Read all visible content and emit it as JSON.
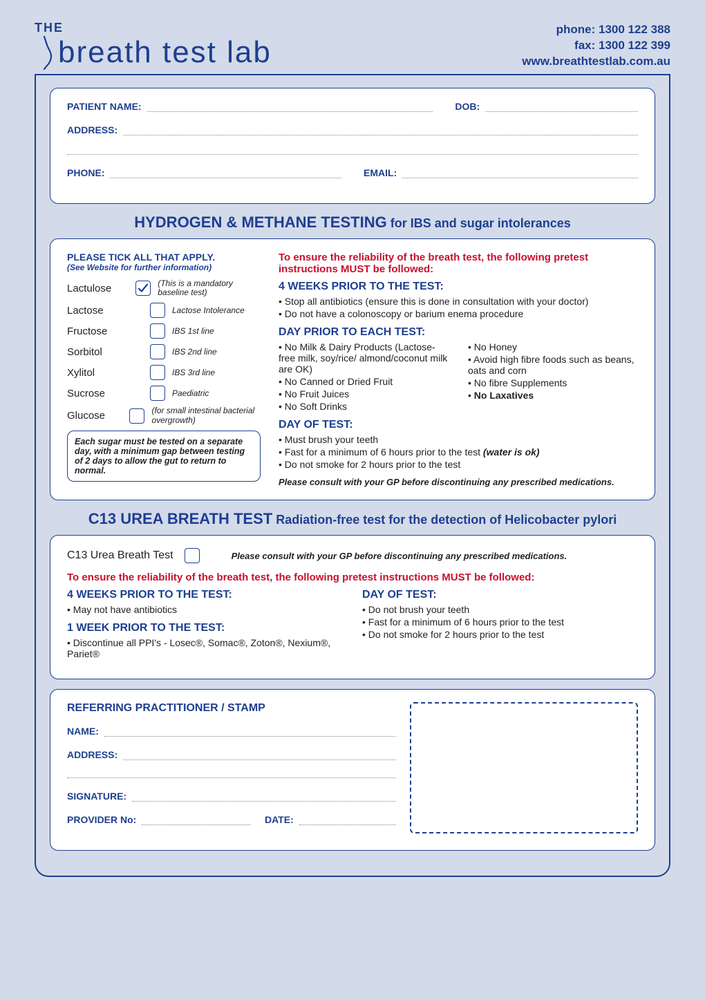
{
  "colors": {
    "brand_blue": "#1e3f90",
    "alert_red": "#c8102e",
    "page_bg": "#d3dae9",
    "panel_bg": "#ffffff",
    "dot_gray": "#888888"
  },
  "header": {
    "contact_phone": "phone: 1300 122 388",
    "contact_fax": "fax: 1300 122 399",
    "contact_web": "www.breathtestlab.com.au",
    "logo_the": "THE",
    "logo_name": "breath test lab"
  },
  "patient": {
    "name_label": "PATIENT NAME:",
    "dob_label": "DOB:",
    "address_label": "ADDRESS:",
    "phone_label": "PHONE:",
    "email_label": "EMAIL:"
  },
  "hmt": {
    "title_main": "HYDROGEN & METHANE TESTING",
    "title_sub": " for IBS and sugar intolerances",
    "tick_title": "PLEASE TICK ALL THAT APPLY.",
    "tick_sub": "(See Website for further information)",
    "tests": [
      {
        "name": "Lactulose",
        "checked": true,
        "note": "(This is a mandatory baseline test)"
      },
      {
        "name": "Lactose",
        "checked": false,
        "note": "Lactose Intolerance"
      },
      {
        "name": "Fructose",
        "checked": false,
        "note": "IBS 1st line"
      },
      {
        "name": "Sorbitol",
        "checked": false,
        "note": "IBS 2nd line"
      },
      {
        "name": "Xylitol",
        "checked": false,
        "note": "IBS 3rd line"
      },
      {
        "name": "Sucrose",
        "checked": false,
        "note": "Paediatric"
      },
      {
        "name": "Glucose",
        "checked": false,
        "note": "(for small intestinal bacterial overgrowth)"
      }
    ],
    "note_box": "Each sugar must be tested on a separate day, with a minimum gap between testing of 2 days to allow the gut to return to normal.",
    "pretest_intro": "To ensure the reliability of the breath test, the following pretest instructions MUST be followed:",
    "four_weeks_h": "4 WEEKS PRIOR TO THE TEST:",
    "four_weeks": [
      "Stop all antibiotics (ensure this is done in consultation with your doctor)",
      "Do not have a colonoscopy or barium enema procedure"
    ],
    "day_prior_h": "DAY PRIOR TO EACH TEST:",
    "day_prior_left": [
      "No Milk & Dairy Products (Lactose-free milk, soy/rice/ almond/coconut milk are OK)",
      "No Canned or Dried Fruit",
      "No Fruit Juices",
      "No Soft Drinks"
    ],
    "day_prior_right": [
      "No Honey",
      "Avoid high fibre foods such as beans, oats and corn",
      "No fibre Supplements"
    ],
    "day_prior_right_bold": "No Laxatives",
    "day_of_h": "DAY OF TEST:",
    "day_of": [
      "Must brush your teeth"
    ],
    "day_of_item2_pre": "Fast for a minimum of 6 hours prior to the test ",
    "day_of_item2_em": "(water is ok)",
    "day_of_item3": "Do not smoke for 2 hours prior to the test",
    "consult": "Please consult with your GP before discontinuing any prescribed medications."
  },
  "c13": {
    "title_main": "C13 UREA BREATH TEST",
    "title_sub": " Radiation-free test for the detection of Helicobacter pylori",
    "check_label": "C13 Urea Breath Test",
    "consult": "Please consult with your GP before discontinuing any prescribed medications.",
    "pretest_intro": "To ensure the reliability of the breath test, the following pretest instructions MUST be followed:",
    "left_h1": "4 WEEKS PRIOR TO THE TEST:",
    "left_b1": "May not have antibiotics",
    "left_h2": "1 WEEK PRIOR TO THE TEST:",
    "left_b2": "Discontinue all PPI's - Losec®, Somac®, Zoton®, Nexium®, Pariet®",
    "right_h": "DAY OF TEST:",
    "right": [
      "Do not brush your teeth",
      "Fast for a minimum of 6 hours prior to the test",
      "Do not smoke for 2 hours prior to the test"
    ]
  },
  "referrer": {
    "title": "REFERRING PRACTITIONER / STAMP",
    "name": "NAME:",
    "address": "ADDRESS:",
    "signature": "SIGNATURE:",
    "provider": "PROVIDER No:",
    "date": "DATE:"
  }
}
